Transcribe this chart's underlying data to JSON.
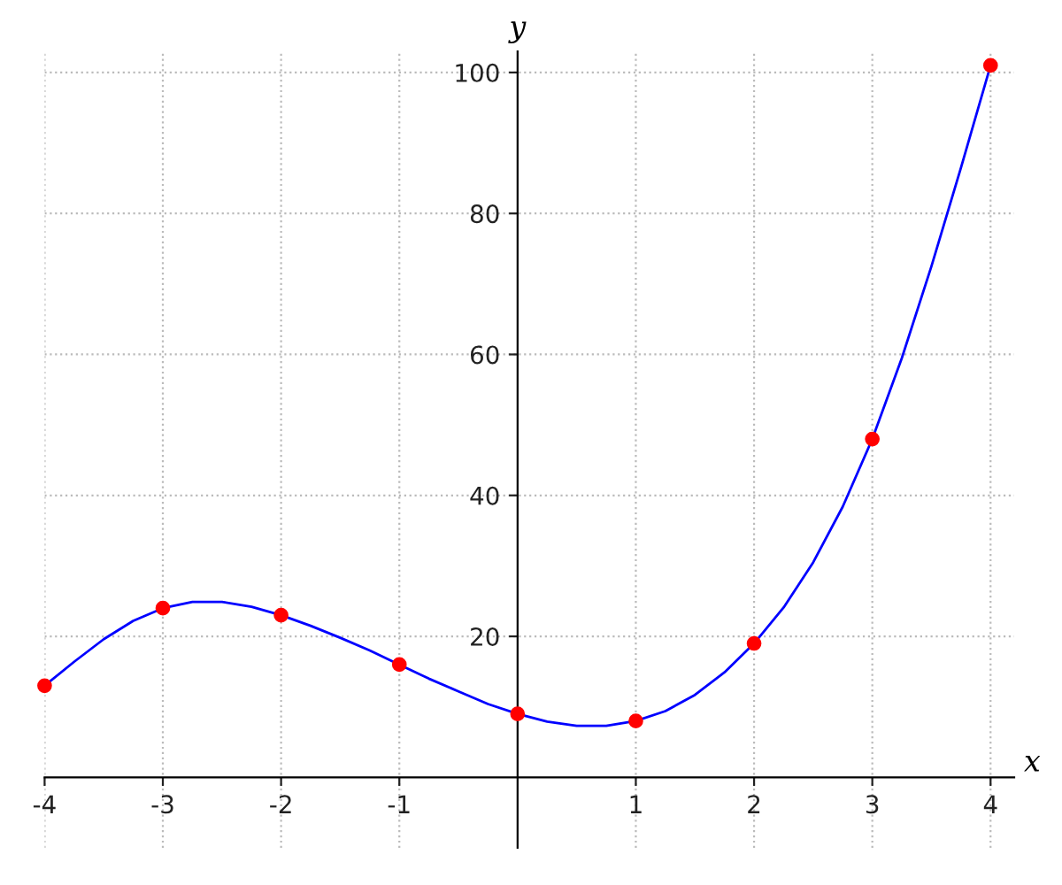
{
  "chart_data": {
    "type": "line",
    "xlabel": "x",
    "ylabel": "y",
    "x": [
      -4,
      -3,
      -2,
      -1,
      0,
      1,
      2,
      3,
      4
    ],
    "series": [
      {
        "color": "#0000ff",
        "x": [
          -4,
          -3.75,
          -3.5,
          -3.25,
          -3,
          -2.75,
          -2.5,
          -2.25,
          -2,
          -1.75,
          -1.5,
          -1.25,
          -1,
          -0.75,
          -0.5,
          -0.25,
          0,
          0.25,
          0.5,
          0.75,
          1,
          1.25,
          1.5,
          1.75,
          2,
          2.25,
          2.5,
          2.75,
          3,
          3.25,
          3.5,
          3.75,
          4
        ],
        "values": [
          13,
          16.4,
          19.6,
          22.2,
          24,
          24.9,
          24.9,
          24.2,
          23,
          21.5,
          19.8,
          18,
          16,
          14,
          12.2,
          10.4,
          9,
          7.9,
          7.3,
          7.3,
          8,
          9.4,
          11.7,
          14.9,
          19,
          24.1,
          30.5,
          38.4,
          48,
          59.5,
          72.5,
          86.5,
          101
        ]
      },
      {
        "type": "scatter",
        "color": "#ff0000",
        "marker": "circle",
        "values": [
          13,
          24,
          23,
          16,
          9,
          8,
          19,
          48,
          101
        ]
      }
    ],
    "xlim": [
      -4,
      4.2
    ],
    "ylim": [
      -10,
      103
    ],
    "xticks": [
      -4,
      -3,
      -2,
      -1,
      1,
      2,
      3,
      4
    ],
    "yticks": [
      20,
      40,
      60,
      80,
      100
    ],
    "grid": true,
    "line_style": "solid"
  }
}
